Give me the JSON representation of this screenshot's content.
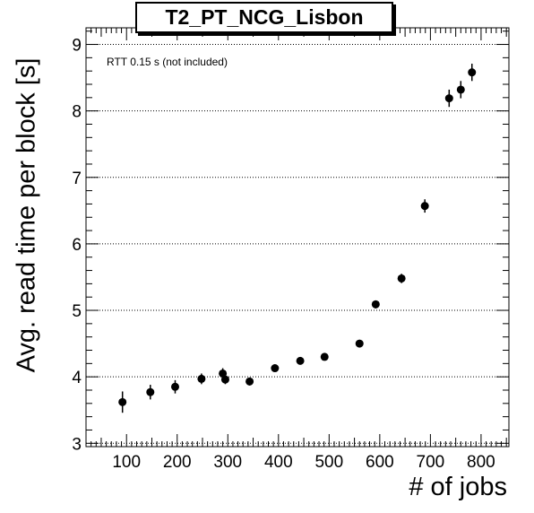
{
  "chart_data": {
    "type": "scatter",
    "title": "T2_PT_NCG_Lisbon",
    "xlabel": "# of jobs",
    "ylabel": "Avg. read time per block [s]",
    "annotation": "RTT 0.15 s (not included)",
    "xlim": [
      20,
      855
    ],
    "ylim": [
      2.95,
      9.25
    ],
    "xticks": [
      100,
      200,
      300,
      400,
      500,
      600,
      700,
      800
    ],
    "yticks": [
      3,
      4,
      5,
      6,
      7,
      8,
      9
    ],
    "grid": "horizontal dotted",
    "marker_color": "#000000",
    "points": [
      {
        "x": 92,
        "y": 3.62,
        "err": 0.16
      },
      {
        "x": 147,
        "y": 3.77,
        "err": 0.11
      },
      {
        "x": 196,
        "y": 3.85,
        "err": 0.1
      },
      {
        "x": 248,
        "y": 3.97,
        "err": 0.08
      },
      {
        "x": 290,
        "y": 4.05,
        "err": 0.08
      },
      {
        "x": 295,
        "y": 3.96,
        "err": 0.07
      },
      {
        "x": 343,
        "y": 3.93,
        "err": 0.06
      },
      {
        "x": 393,
        "y": 4.13,
        "err": 0.05
      },
      {
        "x": 443,
        "y": 4.24,
        "err": 0.05
      },
      {
        "x": 491,
        "y": 4.3,
        "err": 0.05
      },
      {
        "x": 560,
        "y": 4.5,
        "err": 0.05
      },
      {
        "x": 592,
        "y": 5.09,
        "err": 0.06
      },
      {
        "x": 643,
        "y": 5.48,
        "err": 0.07
      },
      {
        "x": 689,
        "y": 6.57,
        "err": 0.1
      },
      {
        "x": 737,
        "y": 8.19,
        "err": 0.13
      },
      {
        "x": 760,
        "y": 8.32,
        "err": 0.13
      },
      {
        "x": 782,
        "y": 8.58,
        "err": 0.13
      }
    ]
  }
}
